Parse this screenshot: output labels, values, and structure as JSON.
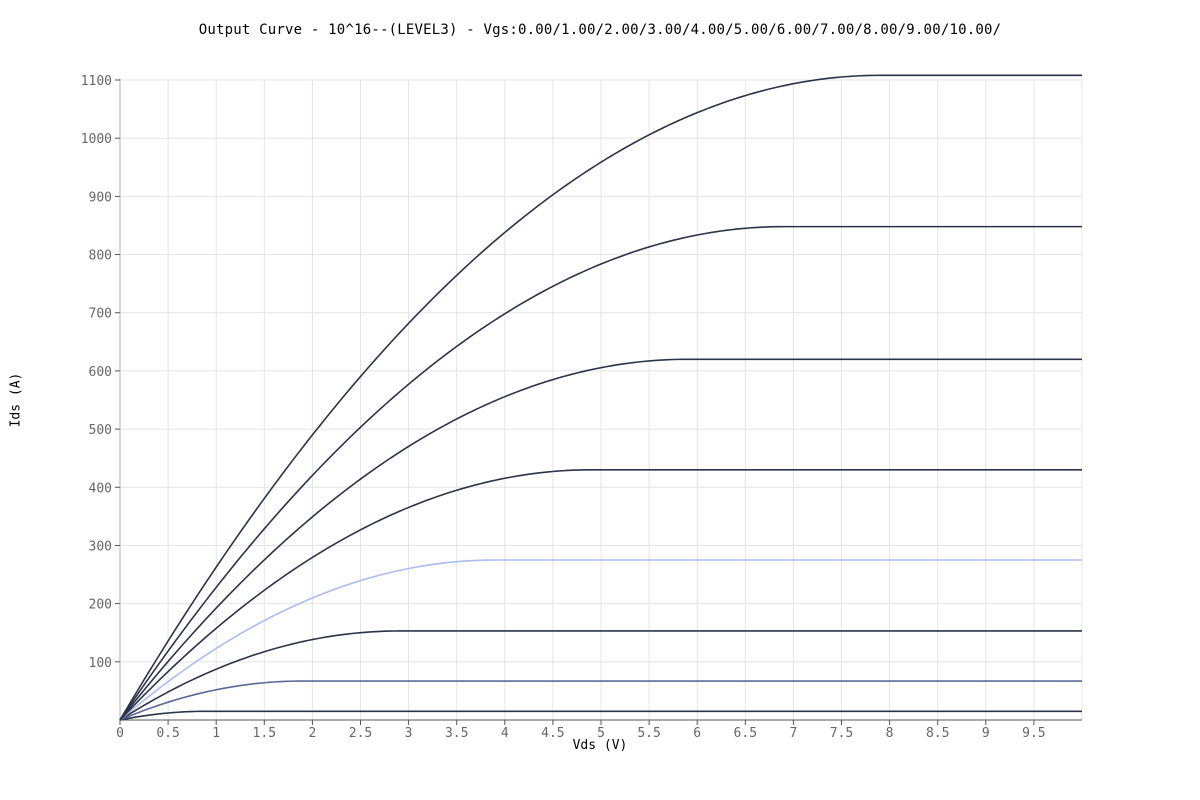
{
  "chart_data": {
    "type": "line",
    "title": "Output Curve - 10^16--(LEVEL3) - Vgs:0.00/1.00/2.00/3.00/4.00/5.00/6.00/7.00/8.00/9.00/10.00/",
    "xlabel": "Vds (V)",
    "ylabel": "Ids (A)",
    "xlim": [
      0,
      10
    ],
    "ylim": [
      0,
      1100
    ],
    "xticks": [
      0,
      0.5,
      1,
      1.5,
      2,
      2.5,
      3,
      3.5,
      4,
      4.5,
      5,
      5.5,
      6,
      6.5,
      7,
      7.5,
      8,
      8.5,
      9,
      9.5
    ],
    "xtick_labels": [
      "0",
      "0.5",
      "1",
      "1.5",
      "2",
      "2.5",
      "3",
      "3.5",
      "4",
      "4.5",
      "5",
      "5.5",
      "6",
      "6.5",
      "7",
      "7.5",
      "8",
      "8.5",
      "9",
      "9.5"
    ],
    "yticks": [
      100,
      200,
      300,
      400,
      500,
      600,
      700,
      800,
      900,
      1000,
      1100
    ],
    "ytick_labels": [
      "100",
      "200",
      "300",
      "400",
      "500",
      "600",
      "700",
      "800",
      "900",
      "1000",
      "1100"
    ],
    "grid": true,
    "legend": "none",
    "series": [
      {
        "color": "#2b3348",
        "sat_vds": 0.9,
        "sat_ids": 15
      },
      {
        "color": "#5a6a96",
        "sat_vds": 1.9,
        "sat_ids": 67
      },
      {
        "color": "#2b3348",
        "sat_vds": 2.9,
        "sat_ids": 153
      },
      {
        "color": "#a9bdf2",
        "sat_vds": 3.9,
        "sat_ids": 275
      },
      {
        "color": "#2b3348",
        "sat_vds": 4.9,
        "sat_ids": 430
      },
      {
        "color": "#2b3348",
        "sat_vds": 5.9,
        "sat_ids": 620
      },
      {
        "color": "#2b3348",
        "sat_vds": 6.9,
        "sat_ids": 848
      },
      {
        "color": "#2b3348",
        "sat_vds": 7.9,
        "sat_ids": 1108
      }
    ]
  }
}
